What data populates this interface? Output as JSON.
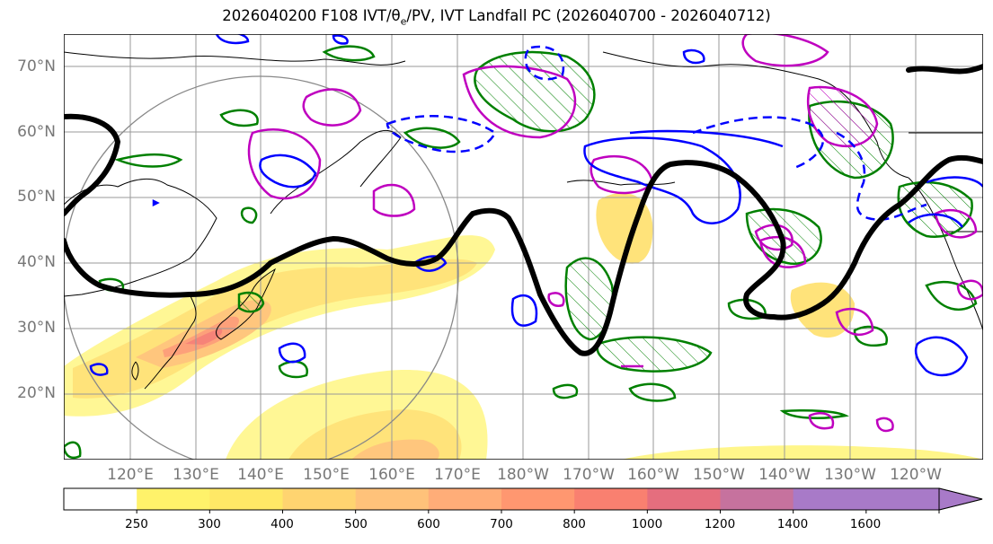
{
  "title": "2026040200 F108 IVT/θ",
  "title_sub": "e",
  "title_rest": "/PV, IVT Landfall PC (2026040700 - 2026040712)",
  "lat_labels": [
    "70°N",
    "60°N",
    "50°N",
    "40°N",
    "30°N",
    "20°N"
  ],
  "lon_labels": [
    "120°E",
    "130°E",
    "140°E",
    "150°E",
    "160°E",
    "170°E",
    "180°W",
    "170°W",
    "160°W",
    "150°W",
    "140°W",
    "130°W",
    "120°W"
  ],
  "colorbar": {
    "levels": [
      "250",
      "300",
      "400",
      "500",
      "600",
      "700",
      "800",
      "1000",
      "1200",
      "1400",
      "1600"
    ],
    "colors": [
      "#ffffff",
      "#fff26a",
      "#ffe866",
      "#ffd470",
      "#ffc27a",
      "#ffad78",
      "#ff9770",
      "#f98070",
      "#e56e7e",
      "#c6729e",
      "#a87ac8"
    ]
  },
  "legend_colors": {
    "pv_contour": "#000000",
    "theta_e_neg": "#0000ff",
    "pv_anomaly": "#bf00bf",
    "hatched": "#008000"
  }
}
